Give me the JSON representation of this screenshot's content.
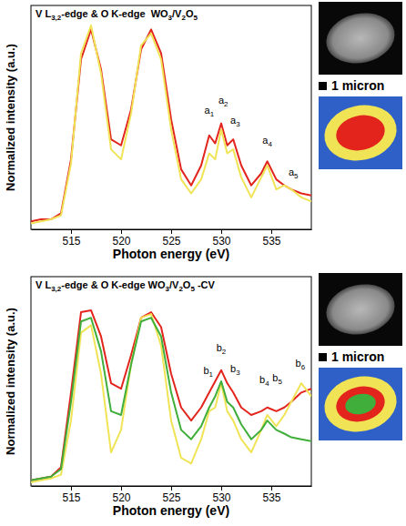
{
  "chart_data": [
    {
      "type": "line",
      "title": "V L3,2-edge & O K-edge  WO3/V2O5",
      "x_label": "Photon energy (eV)",
      "y_label": "Normalized intensity (a.u.)",
      "xlim": [
        511,
        539
      ],
      "xticks": [
        515,
        520,
        525,
        530,
        535
      ],
      "ylim": [
        0,
        1.12
      ],
      "tick_labels": "x",
      "x": [
        511,
        512,
        513,
        514,
        515,
        516,
        517,
        518,
        519,
        520,
        521,
        522,
        523,
        524,
        525,
        526,
        527,
        528,
        528.8,
        529.4,
        530,
        530.6,
        531.2,
        532,
        533,
        534,
        534.6,
        535.5,
        536.3,
        537,
        538,
        539
      ],
      "series": [
        {
          "color": "#e3241d",
          "values": [
            0.04,
            0.05,
            0.05,
            0.08,
            0.35,
            0.85,
            1.0,
            0.8,
            0.45,
            0.42,
            0.6,
            0.9,
            1.0,
            0.88,
            0.55,
            0.3,
            0.22,
            0.32,
            0.47,
            0.43,
            0.53,
            0.42,
            0.45,
            0.32,
            0.22,
            0.28,
            0.34,
            0.25,
            0.22,
            0.2,
            0.18,
            0.17
          ]
        },
        {
          "color": "#f0e456",
          "values": [
            0.03,
            0.04,
            0.05,
            0.07,
            0.33,
            0.88,
            1.02,
            0.78,
            0.4,
            0.35,
            0.58,
            0.92,
            0.98,
            0.85,
            0.5,
            0.25,
            0.18,
            0.25,
            0.38,
            0.35,
            0.5,
            0.38,
            0.4,
            0.26,
            0.16,
            0.26,
            0.32,
            0.2,
            0.22,
            0.2,
            0.16,
            0.14
          ]
        }
      ],
      "annotations": [
        {
          "text": "a1",
          "x": 528.8,
          "y": 0.58
        },
        {
          "text": "a2",
          "x": 530.2,
          "y": 0.63
        },
        {
          "text": "a3",
          "x": 531.4,
          "y": 0.53
        },
        {
          "text": "a4",
          "x": 534.6,
          "y": 0.43
        },
        {
          "text": "a5",
          "x": 537.2,
          "y": 0.27
        }
      ],
      "scale_bar_label": "1 micron"
    },
    {
      "type": "line",
      "title": "V L3,2-edge & O K-edge WO3/V2O5 -CV",
      "x_label": "Photon energy (eV)",
      "y_label": "Normalized intensity (a.u.)",
      "xlim": [
        511,
        539
      ],
      "xticks": [
        515,
        520,
        525,
        530,
        535
      ],
      "ylim": [
        0,
        1.12
      ],
      "tick_labels": "x",
      "x": [
        511,
        512,
        513,
        514,
        515,
        516,
        517,
        518,
        519,
        520,
        521,
        522,
        523,
        524,
        525,
        526,
        527,
        528,
        528.8,
        529.4,
        530,
        530.6,
        531.2,
        532,
        533,
        534,
        534.6,
        535.5,
        536.3,
        537,
        538,
        539
      ],
      "series": [
        {
          "color": "#e3241d",
          "values": [
            0.03,
            0.04,
            0.05,
            0.1,
            0.5,
            0.93,
            0.94,
            0.8,
            0.55,
            0.52,
            0.7,
            0.9,
            0.93,
            0.85,
            0.6,
            0.42,
            0.35,
            0.42,
            0.5,
            0.56,
            0.62,
            0.55,
            0.5,
            0.42,
            0.38,
            0.4,
            0.42,
            0.4,
            0.42,
            0.45,
            0.5,
            0.52
          ]
        },
        {
          "color": "#f0e456",
          "values": [
            0.02,
            0.03,
            0.04,
            0.06,
            0.35,
            0.82,
            0.86,
            0.6,
            0.18,
            0.3,
            0.65,
            0.9,
            0.92,
            0.75,
            0.35,
            0.15,
            0.12,
            0.25,
            0.4,
            0.42,
            0.55,
            0.4,
            0.35,
            0.25,
            0.18,
            0.3,
            0.38,
            0.32,
            0.38,
            0.45,
            0.55,
            0.48
          ]
        },
        {
          "color": "#3fae3a",
          "values": [
            0.03,
            0.04,
            0.05,
            0.09,
            0.45,
            0.88,
            0.9,
            0.72,
            0.4,
            0.38,
            0.65,
            0.88,
            0.9,
            0.8,
            0.5,
            0.3,
            0.25,
            0.32,
            0.42,
            0.48,
            0.56,
            0.45,
            0.42,
            0.33,
            0.25,
            0.3,
            0.35,
            0.3,
            0.28,
            0.26,
            0.25,
            0.24
          ]
        }
      ],
      "annotations": [
        {
          "text": "b1",
          "x": 528.7,
          "y": 0.6
        },
        {
          "text": "b2",
          "x": 530.0,
          "y": 0.72
        },
        {
          "text": "b3",
          "x": 531.4,
          "y": 0.61
        },
        {
          "text": "b4",
          "x": 534.3,
          "y": 0.55
        },
        {
          "text": "b5",
          "x": 535.6,
          "y": 0.56
        },
        {
          "text": "b6",
          "x": 537.9,
          "y": 0.64
        }
      ],
      "scale_bar_label": "1 micron"
    }
  ]
}
